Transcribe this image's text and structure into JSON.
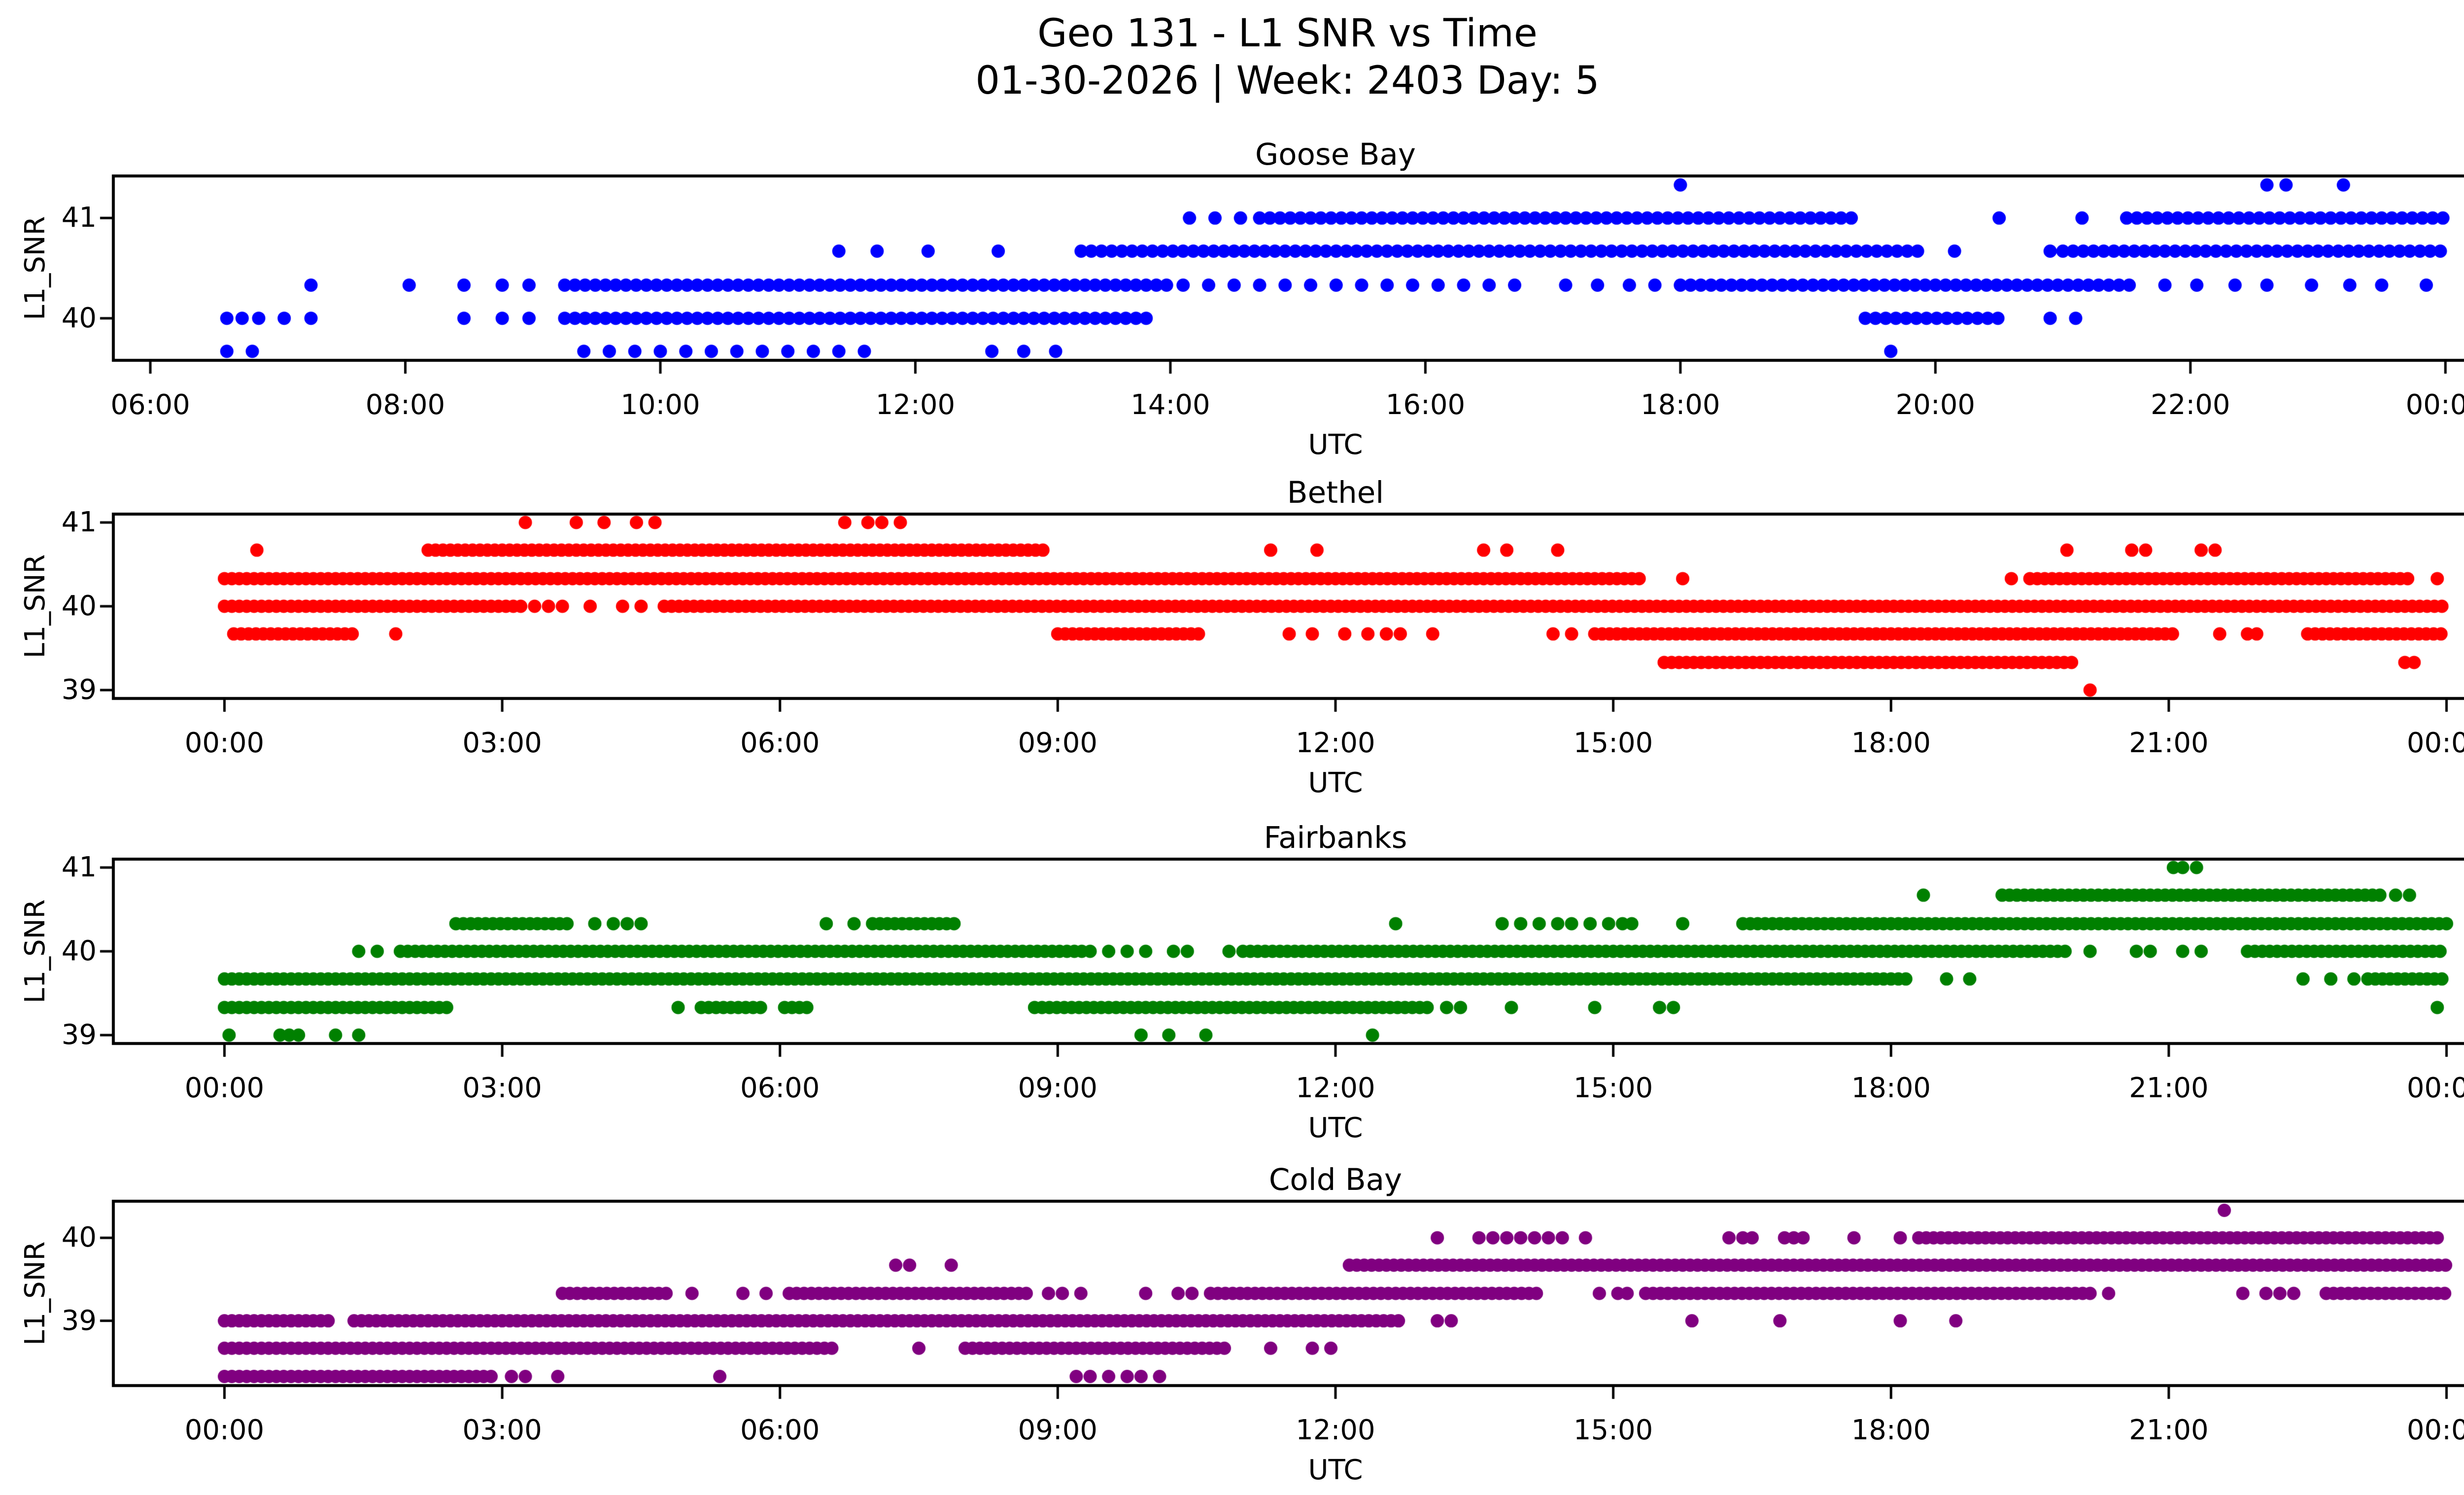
{
  "figure": {
    "title_line1": "Geo 131 - L1 SNR vs Time",
    "title_line2": "01-30-2026 | Week: 2403 Day: 5",
    "background_color": "#ffffff",
    "axes_edge_color": "#000000",
    "text_color": "#000000"
  },
  "chart_data": [
    {
      "type": "scatter",
      "title": "Goose Bay",
      "xlabel": "UTC",
      "ylabel": "L1_SNR",
      "marker_color": "#0000ff",
      "grid": false,
      "legend": null,
      "xlim_hours": [
        5.71,
        24.88
      ],
      "ylim": [
        39.58,
        41.42
      ],
      "yticks": [
        {
          "value": 40,
          "label": "40"
        },
        {
          "value": 41,
          "label": "41"
        }
      ],
      "xticks": [
        {
          "hour": 6,
          "label": "06:00"
        },
        {
          "hour": 8,
          "label": "08:00"
        },
        {
          "hour": 10,
          "label": "10:00"
        },
        {
          "hour": 12,
          "label": "12:00"
        },
        {
          "hour": 14,
          "label": "14:00"
        },
        {
          "hour": 16,
          "label": "16:00"
        },
        {
          "hour": 18,
          "label": "18:00"
        },
        {
          "hour": 20,
          "label": "20:00"
        },
        {
          "hour": 22,
          "label": "22:00"
        },
        {
          "hour": 24,
          "label": "00:00"
        }
      ],
      "series": [
        {
          "snr": 41.33,
          "dense_runs": [],
          "sparse_runs": [],
          "dots": [
            18.0,
            22.6,
            22.75,
            23.2
          ]
        },
        {
          "snr": 41.0,
          "dense_runs": [
            [
              14.7,
              19.35
            ],
            [
              21.5,
              24.0
            ]
          ],
          "sparse_runs": [],
          "dots": [
            14.15,
            14.35,
            14.55,
            20.5,
            21.15
          ]
        },
        {
          "snr": 40.67,
          "dense_runs": [
            [
              13.3,
              19.9
            ],
            [
              21.0,
              24.0
            ]
          ],
          "sparse_runs": [],
          "dots": [
            11.4,
            11.7,
            12.1,
            12.65,
            20.15,
            20.9
          ]
        },
        {
          "snr": 40.33,
          "dense_runs": [
            [
              9.25,
              14.0
            ],
            [
              18.0,
              21.55
            ]
          ],
          "sparse_runs": [
            [
              14.1,
              16.85
            ]
          ],
          "dots": [
            7.26,
            8.03,
            8.46,
            8.76,
            8.97,
            17.1,
            17.35,
            17.6,
            17.8,
            21.8,
            22.05,
            22.35,
            22.6,
            22.95,
            23.25,
            23.5,
            23.85
          ]
        },
        {
          "snr": 40.0,
          "dense_runs": [
            [
              9.25,
              13.85
            ],
            [
              19.45,
              20.55
            ]
          ],
          "sparse_runs": [],
          "dots": [
            6.6,
            6.72,
            6.85,
            7.05,
            7.26,
            8.46,
            8.76,
            8.97,
            20.9,
            21.1
          ]
        },
        {
          "snr": 39.67,
          "dense_runs": [],
          "sparse_runs": [
            [
              9.4,
              11.65
            ]
          ],
          "dots": [
            6.6,
            6.8,
            12.6,
            12.85,
            13.1,
            19.65
          ]
        }
      ]
    },
    {
      "type": "scatter",
      "title": "Bethel",
      "xlabel": "UTC",
      "ylabel": "L1_SNR",
      "marker_color": "#ff0000",
      "grid": false,
      "legend": null,
      "xlim_hours": [
        -1.2,
        25.2
      ],
      "ylim": [
        38.9,
        41.1
      ],
      "yticks": [
        {
          "value": 39,
          "label": "39"
        },
        {
          "value": 40,
          "label": "40"
        },
        {
          "value": 41,
          "label": "41"
        }
      ],
      "xticks": [
        {
          "hour": 0,
          "label": "00:00"
        },
        {
          "hour": 3,
          "label": "03:00"
        },
        {
          "hour": 6,
          "label": "06:00"
        },
        {
          "hour": 9,
          "label": "09:00"
        },
        {
          "hour": 12,
          "label": "12:00"
        },
        {
          "hour": 15,
          "label": "15:00"
        },
        {
          "hour": 18,
          "label": "18:00"
        },
        {
          "hour": 21,
          "label": "21:00"
        },
        {
          "hour": 24,
          "label": "00:00"
        }
      ],
      "series": [
        {
          "snr": 41.0,
          "dense_runs": [],
          "sparse_runs": [],
          "dots": [
            3.25,
            3.8,
            4.1,
            4.45,
            4.65,
            6.7,
            6.95,
            7.1,
            7.3
          ]
        },
        {
          "snr": 40.67,
          "dense_runs": [
            [
              2.2,
              8.85
            ]
          ],
          "sparse_runs": [],
          "dots": [
            0.35,
            11.3,
            11.8,
            13.6,
            13.85,
            14.4,
            19.9,
            20.6,
            20.75,
            21.35,
            21.5
          ]
        },
        {
          "snr": 40.33,
          "dense_runs": [
            [
              0.0,
              15.3
            ],
            [
              19.5,
              23.65
            ]
          ],
          "sparse_runs": [],
          "dots": [
            15.75,
            19.3,
            23.9
          ]
        },
        {
          "snr": 40.0,
          "dense_runs": [
            [
              0.0,
              3.2
            ],
            [
              4.75,
              24.0
            ]
          ],
          "sparse_runs": [],
          "dots": [
            3.35,
            3.5,
            3.65,
            3.95,
            4.3,
            4.5
          ]
        },
        {
          "snr": 39.67,
          "dense_runs": [
            [
              0.1,
              1.45
            ],
            [
              9.0,
              10.55
            ],
            [
              14.8,
              21.1
            ],
            [
              22.5,
              24.0
            ]
          ],
          "sparse_runs": [],
          "dots": [
            1.85,
            11.5,
            11.75,
            12.1,
            12.35,
            12.55,
            12.7,
            13.05,
            14.35,
            14.55,
            21.55,
            21.85,
            21.95
          ]
        },
        {
          "snr": 39.33,
          "dense_runs": [
            [
              15.55,
              19.95
            ]
          ],
          "sparse_runs": [],
          "dots": [
            23.55,
            23.65
          ]
        },
        {
          "snr": 39.0,
          "dense_runs": [],
          "sparse_runs": [],
          "dots": [
            20.15
          ]
        }
      ]
    },
    {
      "type": "scatter",
      "title": "Fairbanks",
      "xlabel": "UTC",
      "ylabel": "L1_SNR",
      "marker_color": "#008000",
      "grid": false,
      "legend": null,
      "xlim_hours": [
        -1.2,
        25.2
      ],
      "ylim": [
        38.9,
        41.1
      ],
      "yticks": [
        {
          "value": 39,
          "label": "39"
        },
        {
          "value": 40,
          "label": "40"
        },
        {
          "value": 41,
          "label": "41"
        }
      ],
      "xticks": [
        {
          "hour": 0,
          "label": "00:00"
        },
        {
          "hour": 3,
          "label": "03:00"
        },
        {
          "hour": 6,
          "label": "06:00"
        },
        {
          "hour": 9,
          "label": "09:00"
        },
        {
          "hour": 12,
          "label": "12:00"
        },
        {
          "hour": 15,
          "label": "15:00"
        },
        {
          "hour": 18,
          "label": "18:00"
        },
        {
          "hour": 21,
          "label": "21:00"
        },
        {
          "hour": 24,
          "label": "00:00"
        }
      ],
      "series": [
        {
          "snr": 41.0,
          "dense_runs": [],
          "sparse_runs": [],
          "dots": [
            21.05,
            21.15,
            21.3
          ]
        },
        {
          "snr": 40.67,
          "dense_runs": [
            [
              19.2,
              23.3
            ]
          ],
          "sparse_runs": [],
          "dots": [
            18.35,
            23.45,
            23.6
          ]
        },
        {
          "snr": 40.33,
          "dense_runs": [
            [
              2.5,
              3.75
            ],
            [
              7.0,
              7.9
            ],
            [
              16.4,
              24.0
            ]
          ],
          "sparse_runs": [],
          "dots": [
            4.0,
            4.2,
            4.35,
            4.5,
            6.5,
            6.8,
            12.65,
            13.8,
            14.0,
            14.2,
            14.4,
            14.55,
            14.75,
            14.95,
            15.1,
            15.2,
            15.75
          ]
        },
        {
          "snr": 40.0,
          "dense_runs": [
            [
              1.9,
              9.3
            ],
            [
              11.0,
              19.95
            ],
            [
              21.85,
              24.0
            ]
          ],
          "sparse_runs": [
            [
              9.35,
              10.0
            ]
          ],
          "dots": [
            1.45,
            1.65,
            10.25,
            10.4,
            10.85,
            20.15,
            20.65,
            20.8,
            21.15,
            21.35
          ]
        },
        {
          "snr": 39.67,
          "dense_runs": [
            [
              0.0,
              18.2
            ],
            [
              23.15,
              24.0
            ]
          ],
          "sparse_runs": [],
          "dots": [
            18.6,
            18.85,
            22.45,
            22.75,
            23.0
          ]
        },
        {
          "snr": 39.33,
          "dense_runs": [
            [
              0.0,
              2.4
            ],
            [
              5.15,
              5.85
            ],
            [
              6.05,
              6.35
            ],
            [
              8.75,
              13.0
            ]
          ],
          "sparse_runs": [],
          "dots": [
            4.9,
            13.2,
            13.35,
            13.9,
            14.8,
            15.5,
            15.65,
            23.9
          ]
        },
        {
          "snr": 39.0,
          "dense_runs": [],
          "sparse_runs": [],
          "dots": [
            0.05,
            0.6,
            0.7,
            0.8,
            1.2,
            1.45,
            9.9,
            10.2,
            10.6,
            12.4
          ]
        }
      ]
    },
    {
      "type": "scatter",
      "title": "Cold Bay",
      "xlabel": "UTC",
      "ylabel": "L1_SNR",
      "marker_color": "#800080",
      "grid": false,
      "legend": null,
      "xlim_hours": [
        -1.2,
        25.2
      ],
      "ylim": [
        38.22,
        40.44
      ],
      "yticks": [
        {
          "value": 39,
          "label": "39"
        },
        {
          "value": 40,
          "label": "40"
        }
      ],
      "xticks": [
        {
          "hour": 0,
          "label": "00:00"
        },
        {
          "hour": 3,
          "label": "03:00"
        },
        {
          "hour": 6,
          "label": "06:00"
        },
        {
          "hour": 9,
          "label": "09:00"
        },
        {
          "hour": 12,
          "label": "12:00"
        },
        {
          "hour": 15,
          "label": "15:00"
        },
        {
          "hour": 18,
          "label": "18:00"
        },
        {
          "hour": 21,
          "label": "21:00"
        },
        {
          "hour": 24,
          "label": "00:00"
        }
      ],
      "series": [
        {
          "snr": 40.33,
          "dense_runs": [],
          "sparse_runs": [],
          "dots": [
            21.6
          ]
        },
        {
          "snr": 40.0,
          "dense_runs": [
            [
              18.3,
              23.95
            ]
          ],
          "sparse_runs": [],
          "dots": [
            13.1,
            13.55,
            13.7,
            13.85,
            14.0,
            14.15,
            14.3,
            14.45,
            14.7,
            16.25,
            16.4,
            16.5,
            16.85,
            16.95,
            17.05,
            17.6,
            18.1
          ]
        },
        {
          "snr": 39.67,
          "dense_runs": [
            [
              12.15,
              24.0
            ]
          ],
          "sparse_runs": [],
          "dots": [
            7.25,
            7.4,
            7.85
          ]
        },
        {
          "snr": 39.33,
          "dense_runs": [
            [
              3.65,
              4.8
            ],
            [
              6.1,
              8.7
            ],
            [
              10.65,
              14.2
            ],
            [
              15.35,
              20.2
            ],
            [
              22.7,
              24.0
            ]
          ],
          "sparse_runs": [],
          "dots": [
            5.05,
            5.6,
            5.85,
            8.9,
            9.05,
            9.25,
            9.95,
            10.3,
            10.45,
            14.85,
            15.05,
            15.15,
            20.35,
            21.8,
            22.05,
            22.2,
            22.35
          ]
        },
        {
          "snr": 39.0,
          "dense_runs": [
            [
              0.0,
              1.15
            ],
            [
              1.4,
              12.75
            ]
          ],
          "sparse_runs": [],
          "dots": [
            13.1,
            13.25,
            15.85,
            16.8,
            18.1,
            18.7
          ]
        },
        {
          "snr": 38.67,
          "dense_runs": [
            [
              0.0,
              6.6
            ],
            [
              8.0,
              10.8
            ]
          ],
          "sparse_runs": [],
          "dots": [
            7.5,
            11.3,
            11.75,
            11.95
          ]
        },
        {
          "snr": 38.33,
          "dense_runs": [
            [
              0.0,
              2.95
            ]
          ],
          "sparse_runs": [],
          "dots": [
            3.1,
            3.25,
            3.6,
            5.35,
            9.2,
            9.35,
            9.55,
            9.75,
            9.9,
            10.1
          ]
        }
      ]
    }
  ]
}
